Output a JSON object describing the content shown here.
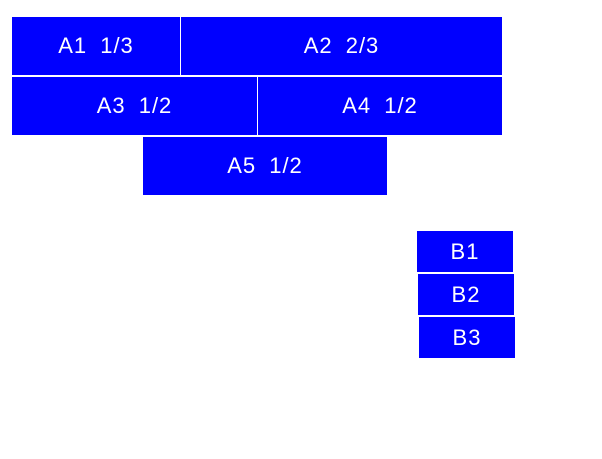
{
  "boxes": [
    {
      "label": "A1 1/3"
    },
    {
      "label": "A2 2/3"
    },
    {
      "label": "A3 1/2"
    },
    {
      "label": "A4 1/2"
    },
    {
      "label": "A5 1/2"
    },
    {
      "label": "B1"
    },
    {
      "label": "B2"
    },
    {
      "label": "B3"
    }
  ],
  "colors": {
    "box": "#0000ff",
    "text": "#ffffff"
  }
}
